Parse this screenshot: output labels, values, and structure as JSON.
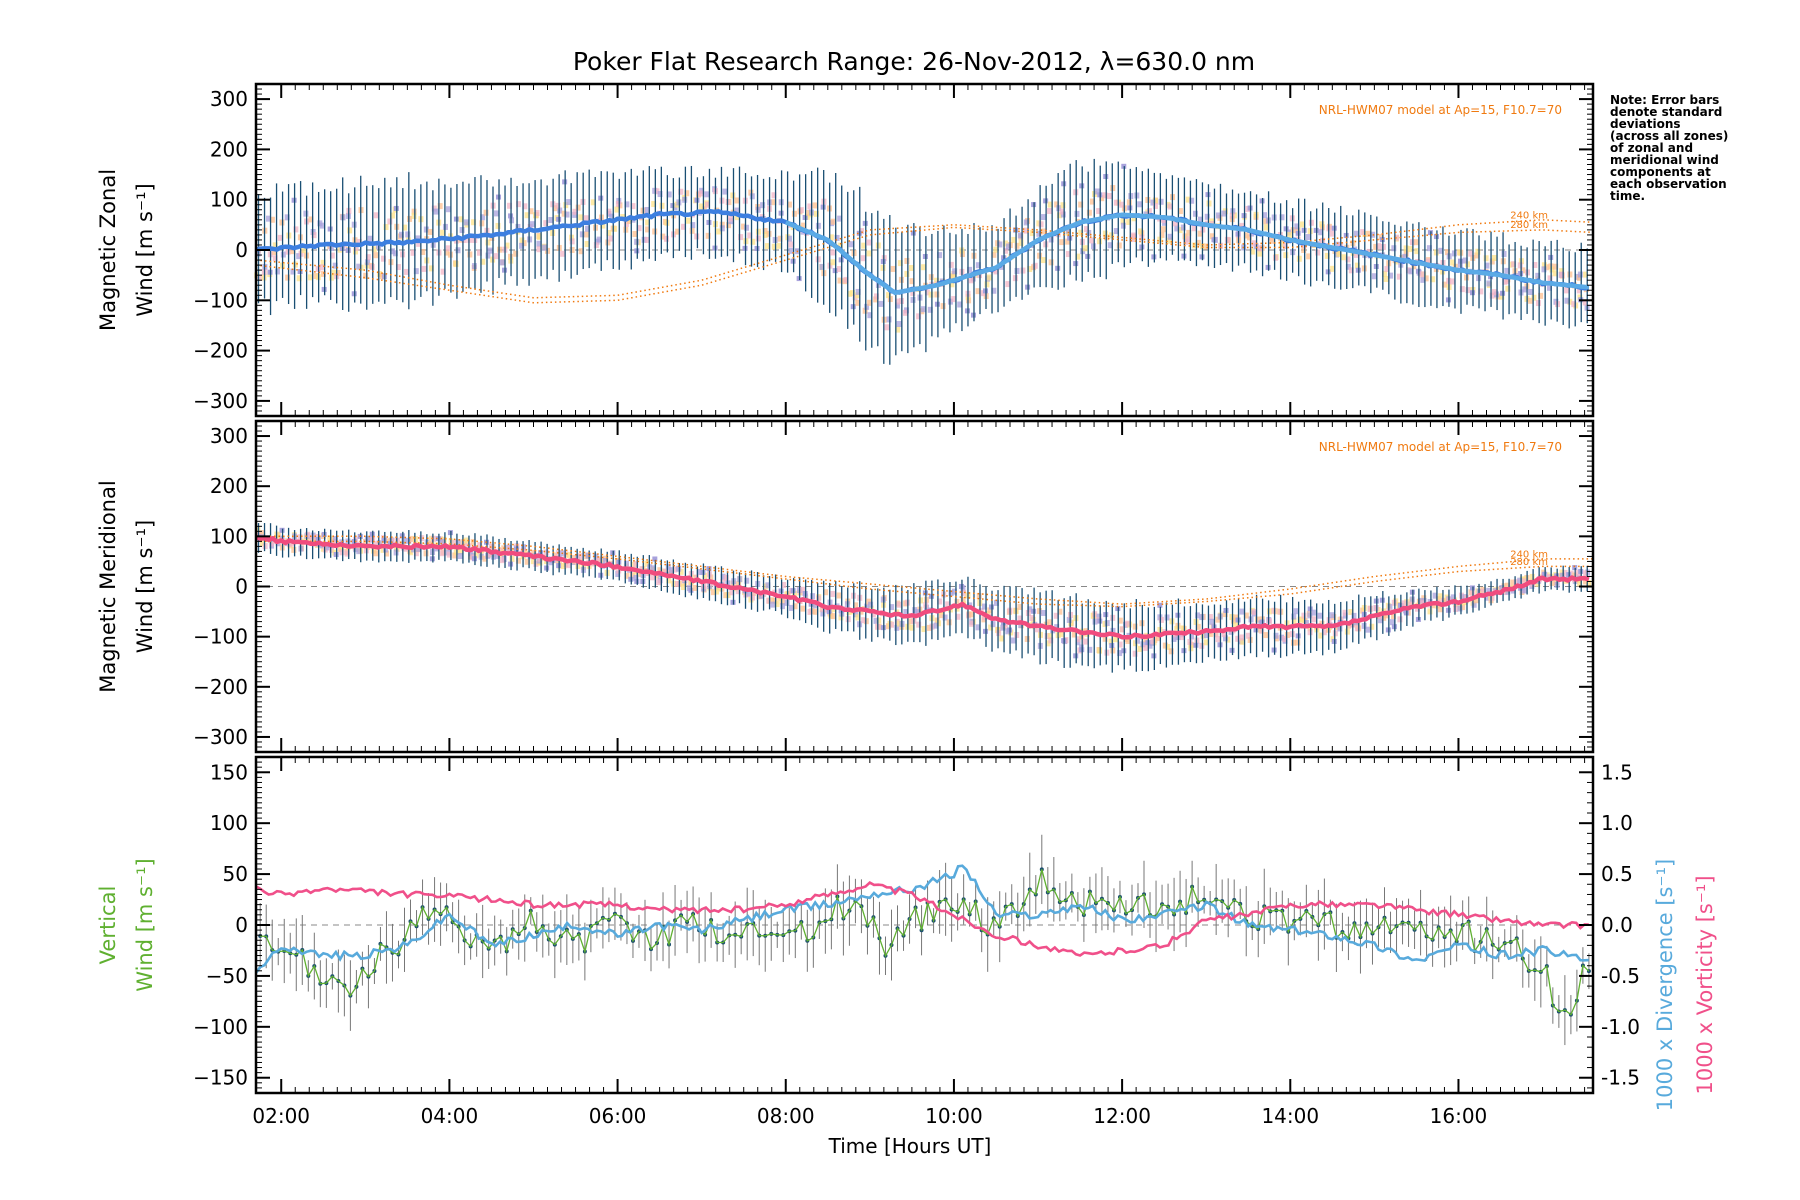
{
  "title": "Poker Flat Research Range: 26-Nov-2012, λ=630.0 nm",
  "note": "Note: Error bars\ndenote standard\ndeviations\n(across all zones)\nof zonal and\nmeridional wind\ncomponents at\neach observation\ntime.",
  "xlabel": "Time [Hours UT]",
  "colors": {
    "zonal": "#3d7fe0",
    "zonal_light": "#5aaae6",
    "meridional": "#f04c7e",
    "vertical": "#5fb030",
    "divergence": "#58aadc",
    "vorticity": "#f0508a",
    "model": "#f07a10",
    "errorbar": "#1a4f73",
    "scatter_lav": "#a8a2dc",
    "scatter_orange": "#ffc090",
    "scatter_yellow": "#ffe38a"
  },
  "chart_data": [
    {
      "type": "line",
      "name": "zonal",
      "ylabel_line1": "Magnetic Zonal",
      "ylabel_line2": "Wind [m s⁻¹]",
      "ylim": [
        -330,
        330
      ],
      "yticks": [
        300,
        200,
        100,
        0,
        -100,
        -200,
        -300
      ],
      "xlim": [
        1.7,
        17.6
      ],
      "xticks": [
        "02:00",
        "04:00",
        "06:00",
        "08:00",
        "10:00",
        "12:00",
        "14:00",
        "16:00"
      ],
      "model_label": "NRL-HWM07 model at Ap=15, F10.7=70",
      "model_alt_labels": [
        "240 km",
        "280 km"
      ],
      "mean_series": {
        "x": [
          1.7,
          2.5,
          3.5,
          4.5,
          5.5,
          6.5,
          7.2,
          8.0,
          8.5,
          9.0,
          9.3,
          9.8,
          10.5,
          11.0,
          11.5,
          12.0,
          12.5,
          13.0,
          13.5,
          14.0,
          14.5,
          15.0,
          15.5,
          16.0,
          16.5,
          17.0,
          17.6
        ],
        "y": [
          0,
          10,
          15,
          30,
          50,
          70,
          75,
          55,
          20,
          -50,
          -85,
          -70,
          -35,
          20,
          55,
          70,
          65,
          50,
          40,
          20,
          5,
          -10,
          -25,
          -40,
          -50,
          -65,
          -75
        ]
      },
      "spread": [
        120,
        120,
        130,
        110,
        100,
        90,
        85,
        100,
        140,
        150,
        140,
        110,
        90,
        100,
        120,
        110,
        90,
        80,
        80,
        80,
        80,
        80,
        80,
        80,
        80,
        80,
        80
      ],
      "model_curves": [
        {
          "x": [
            1.7,
            3.0,
            4.0,
            5.0,
            6.0,
            7.0,
            8.0,
            9.0,
            10.0,
            11.0,
            12.0,
            13.0,
            14.0,
            15.0,
            16.0,
            17.0,
            17.6
          ],
          "y": [
            -20,
            -40,
            -70,
            -95,
            -90,
            -60,
            -10,
            40,
            50,
            40,
            25,
            10,
            15,
            30,
            50,
            60,
            55
          ]
        },
        {
          "x": [
            1.7,
            3.0,
            4.0,
            5.0,
            6.0,
            7.0,
            8.0,
            9.0,
            10.0,
            11.0,
            12.0,
            13.0,
            14.0,
            15.0,
            16.0,
            17.0,
            17.6
          ],
          "y": [
            -30,
            -55,
            -80,
            -105,
            -100,
            -70,
            -20,
            30,
            45,
            35,
            20,
            5,
            5,
            20,
            35,
            40,
            35
          ]
        }
      ]
    },
    {
      "type": "line",
      "name": "meridional",
      "ylabel_line1": "Magnetic Meridional",
      "ylabel_line2": "Wind [m s⁻¹]",
      "ylim": [
        -330,
        330
      ],
      "yticks": [
        300,
        200,
        100,
        0,
        -100,
        -200,
        -300
      ],
      "xlim": [
        1.7,
        17.6
      ],
      "xticks": [
        "02:00",
        "04:00",
        "06:00",
        "08:00",
        "10:00",
        "12:00",
        "14:00",
        "16:00"
      ],
      "model_label": "NRL-HWM07 model at Ap=15, F10.7=70",
      "model_alt_labels": [
        "240 km",
        "280 km"
      ],
      "mean_series": {
        "x": [
          1.7,
          2.0,
          3.0,
          4.0,
          4.5,
          5.0,
          6.0,
          7.0,
          8.0,
          8.5,
          9.0,
          9.5,
          10.0,
          10.1,
          10.5,
          11.0,
          11.5,
          12.0,
          12.5,
          13.0,
          13.5,
          14.0,
          14.5,
          15.0,
          15.5,
          16.0,
          16.5,
          17.0,
          17.6
        ],
        "y": [
          100,
          90,
          80,
          80,
          70,
          60,
          40,
          10,
          -20,
          -40,
          -50,
          -60,
          -40,
          -35,
          -65,
          -80,
          -90,
          -100,
          -95,
          -90,
          -80,
          -80,
          -80,
          -60,
          -40,
          -30,
          -10,
          15,
          15
        ]
      },
      "spread": [
        30,
        30,
        30,
        30,
        30,
        30,
        30,
        35,
        40,
        50,
        55,
        60,
        60,
        60,
        65,
        70,
        70,
        70,
        65,
        60,
        60,
        60,
        50,
        45,
        35,
        30,
        25,
        25,
        25
      ],
      "model_curves": [
        {
          "x": [
            1.7,
            3.0,
            4.0,
            5.0,
            6.0,
            7.0,
            8.0,
            9.0,
            10.0,
            11.0,
            12.0,
            13.0,
            14.0,
            15.0,
            16.0,
            17.0,
            17.6
          ],
          "y": [
            100,
            100,
            95,
            80,
            60,
            40,
            20,
            5,
            -10,
            -25,
            -35,
            -25,
            -5,
            20,
            40,
            55,
            55
          ]
        },
        {
          "x": [
            1.7,
            3.0,
            4.0,
            5.0,
            6.0,
            7.0,
            8.0,
            9.0,
            10.0,
            11.0,
            12.0,
            13.0,
            14.0,
            15.0,
            16.0,
            17.0,
            17.6
          ],
          "y": [
            90,
            90,
            85,
            72,
            55,
            35,
            15,
            -5,
            -20,
            -35,
            -40,
            -30,
            -15,
            10,
            30,
            40,
            40
          ]
        }
      ]
    },
    {
      "type": "line",
      "name": "vertical",
      "ylabel_line1": "Vertical",
      "ylabel_line2": "Wind [m s⁻¹]",
      "ylabel_right_div": "1000 x Divergence [s⁻¹]",
      "ylabel_right_vor": "1000 x Vorticity [s⁻¹]",
      "ylim": [
        -165,
        165
      ],
      "yticks": [
        150,
        100,
        50,
        0,
        -50,
        -100,
        -150
      ],
      "y2lim": [
        -1.65,
        1.65
      ],
      "y2ticks": [
        "1.5",
        "1.0",
        "0.5",
        "0.0",
        "-0.5",
        "-1.0",
        "-1.5"
      ],
      "xlim": [
        1.7,
        17.6
      ],
      "xticks": [
        "02:00",
        "04:00",
        "06:00",
        "08:00",
        "10:00",
        "12:00",
        "14:00",
        "16:00"
      ],
      "series": [
        {
          "name": "vertical",
          "x": [
            1.7,
            2.0,
            2.3,
            2.6,
            2.9,
            3.2,
            3.5,
            3.8,
            4.1,
            4.4,
            4.7,
            5.0,
            5.3,
            5.6,
            5.9,
            6.2,
            6.5,
            6.8,
            7.1,
            7.4,
            7.7,
            8.0,
            8.3,
            8.6,
            8.9,
            9.2,
            9.5,
            9.8,
            10.1,
            10.4,
            10.7,
            11.0,
            11.3,
            11.6,
            11.9,
            12.2,
            12.5,
            12.8,
            13.1,
            13.4,
            13.7,
            14.0,
            14.3,
            14.6,
            14.9,
            15.2,
            15.5,
            15.8,
            16.1,
            16.4,
            16.7,
            17.0,
            17.3,
            17.6
          ],
          "y": [
            -20,
            -30,
            -40,
            -55,
            -60,
            -30,
            -10,
            15,
            -5,
            -10,
            -15,
            5,
            -10,
            -20,
            5,
            -5,
            -15,
            10,
            -5,
            -10,
            -5,
            0,
            -10,
            20,
            15,
            -20,
            5,
            10,
            30,
            0,
            15,
            45,
            30,
            20,
            15,
            25,
            10,
            25,
            15,
            10,
            5,
            0,
            10,
            -5,
            -5,
            0,
            -10,
            -5,
            -10,
            -15,
            -20,
            -45,
            -100,
            -20
          ]
        },
        {
          "name": "divergence",
          "x": [
            1.7,
            2.0,
            2.5,
            3.0,
            3.5,
            4.0,
            4.5,
            5.0,
            5.5,
            6.0,
            6.5,
            7.0,
            7.5,
            8.0,
            8.5,
            9.0,
            9.5,
            10.0,
            10.1,
            10.5,
            11.0,
            11.5,
            12.0,
            12.5,
            13.0,
            13.5,
            14.0,
            14.5,
            15.0,
            15.5,
            16.0,
            16.5,
            17.0,
            17.6
          ],
          "y": [
            -0.5,
            -0.2,
            -0.3,
            -0.3,
            -0.2,
            0.1,
            -0.2,
            -0.1,
            0.0,
            -0.1,
            0.0,
            -0.05,
            0.05,
            0.15,
            0.2,
            0.3,
            0.35,
            0.5,
            0.6,
            0.1,
            0.1,
            0.2,
            0.05,
            0.1,
            0.2,
            0.0,
            -0.05,
            -0.1,
            -0.2,
            -0.35,
            -0.2,
            -0.3,
            -0.25,
            -0.35
          ]
        },
        {
          "name": "vorticity",
          "x": [
            1.7,
            2.0,
            2.5,
            3.0,
            3.5,
            4.0,
            4.5,
            5.0,
            5.5,
            6.0,
            6.5,
            7.0,
            7.5,
            8.0,
            8.5,
            9.0,
            9.5,
            10.0,
            10.5,
            11.0,
            11.5,
            12.0,
            12.5,
            13.0,
            13.5,
            14.0,
            14.5,
            15.0,
            15.5,
            16.0,
            16.5,
            17.0,
            17.6
          ],
          "y": [
            0.35,
            0.3,
            0.35,
            0.33,
            0.3,
            0.28,
            0.25,
            0.2,
            0.2,
            0.2,
            0.15,
            0.15,
            0.15,
            0.2,
            0.3,
            0.4,
            0.3,
            0.1,
            -0.1,
            -0.2,
            -0.3,
            -0.25,
            -0.2,
            0.05,
            0.1,
            0.2,
            0.2,
            0.2,
            0.15,
            0.1,
            0.05,
            0.0,
            0.0
          ]
        }
      ]
    }
  ]
}
